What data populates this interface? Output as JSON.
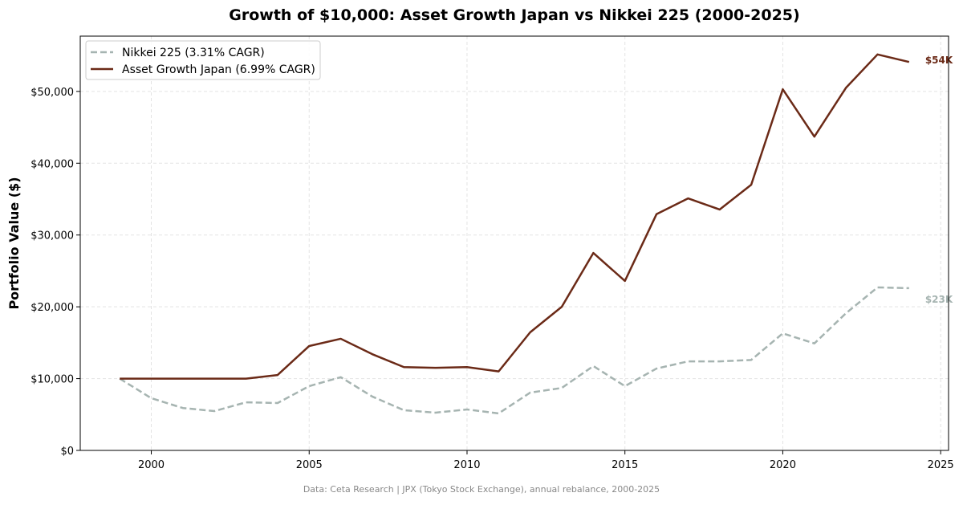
{
  "chart_data": {
    "type": "line",
    "title": "Growth of $10,000: Asset Growth Japan vs Nikkei 225 (2000-2025)",
    "xlabel": "",
    "ylabel": "Portfolio Value ($)",
    "xlim": [
      1997.75,
      2025.25
    ],
    "ylim": [
      0,
      57700
    ],
    "xticks": [
      2000,
      2005,
      2010,
      2015,
      2020,
      2025
    ],
    "xtick_labels": [
      "2000",
      "2005",
      "2010",
      "2015",
      "2020",
      "2025"
    ],
    "yticks": [
      0,
      10000,
      20000,
      30000,
      40000,
      50000
    ],
    "ytick_labels": [
      "$0",
      "$10,000",
      "$20,000",
      "$30,000",
      "$40,000",
      "$50,000"
    ],
    "grid": true,
    "legend_position": "top-left",
    "x": [
      1999,
      2000,
      2001,
      2002,
      2003,
      2004,
      2005,
      2006,
      2007,
      2008,
      2009,
      2010,
      2011,
      2012,
      2013,
      2014,
      2015,
      2016,
      2017,
      2018,
      2019,
      2020,
      2021,
      2022,
      2023,
      2024
    ],
    "series": [
      {
        "name": "Nikkei 225 (3.31% CAGR)",
        "color": "#a6b4b1",
        "style": "dashed",
        "end_label": "$23K",
        "values": [
          10000,
          7270,
          5900,
          5480,
          6700,
          6600,
          8950,
          10200,
          7500,
          5600,
          5260,
          5700,
          5150,
          8050,
          8700,
          11750,
          8950,
          11400,
          12400,
          12400,
          12600,
          16300,
          14900,
          19100,
          22700,
          22600
        ]
      },
      {
        "name": "Asset Growth Japan (6.99% CAGR)",
        "color": "#6b2a17",
        "style": "solid",
        "end_label": "$54K",
        "values": [
          10000,
          10000,
          10000,
          10000,
          10000,
          10500,
          14540,
          15550,
          13400,
          11600,
          11500,
          11600,
          11000,
          16450,
          20000,
          27500,
          23600,
          32900,
          35100,
          33550,
          37000,
          50300,
          43700,
          50500,
          55150,
          54100
        ]
      }
    ],
    "footnote": "Data: Ceta Research | JPX (Tokyo Stock Exchange), annual rebalance, 2000-2025"
  }
}
